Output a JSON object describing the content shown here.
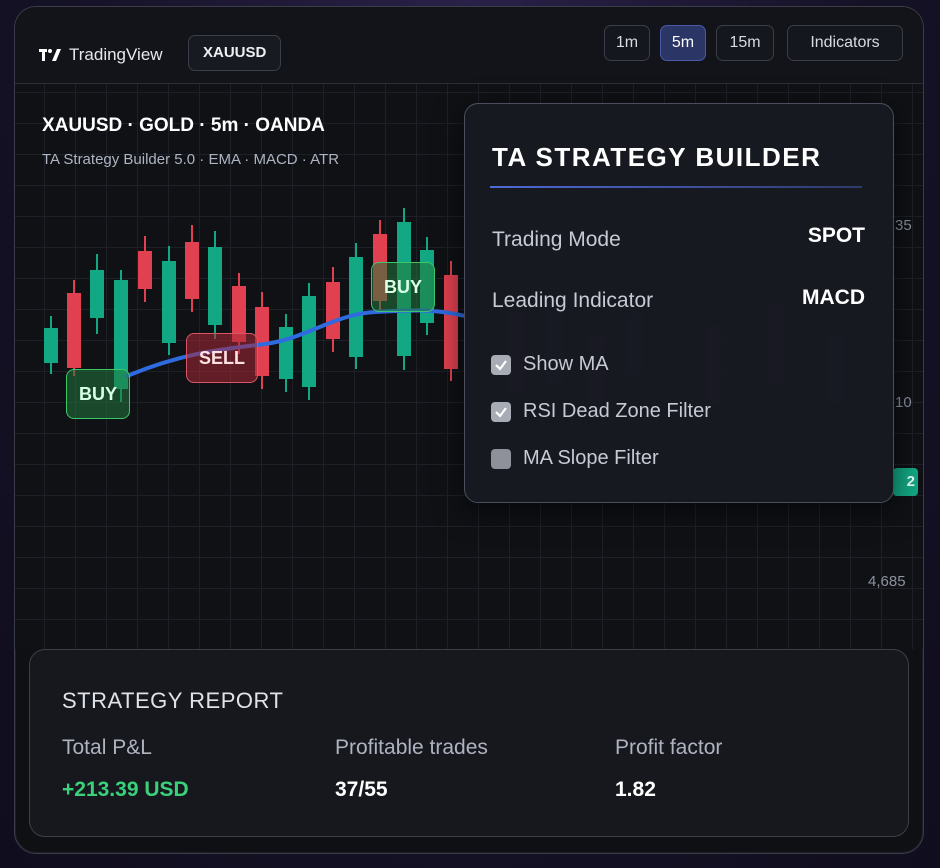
{
  "app": {
    "logo_text": "TradingView",
    "symbol": "XAUUSD"
  },
  "timeframes": [
    {
      "label": "1m",
      "active": false
    },
    {
      "label": "5m",
      "active": true
    },
    {
      "label": "15m",
      "active": false
    }
  ],
  "toolbar": {
    "indicators_label": "Indicators"
  },
  "chart": {
    "title": "XAUUSD · GOLD · 5m · OANDA",
    "subtitle": "TA Strategy Builder 5.0 · EMA · MACD · ATR",
    "price_labels": [
      "35",
      "10",
      "4,685"
    ],
    "last_price_tag": "2",
    "up_color": "#13a884",
    "down_color": "#e0404f",
    "ma_color": "#2f6be0",
    "signals": [
      {
        "label": "BUY",
        "type": "buy"
      },
      {
        "label": "SELL",
        "type": "sell"
      },
      {
        "label": "BUY",
        "type": "buy"
      }
    ]
  },
  "builder": {
    "title": "TA STRATEGY BUILDER",
    "trading_mode_label": "Trading Mode",
    "trading_mode_value": "SPOT",
    "leading_indicator_label": "Leading Indicator",
    "leading_indicator_value": "MACD",
    "options": [
      {
        "label": "Show MA",
        "checked": true
      },
      {
        "label": "RSI Dead Zone Filter",
        "checked": true
      },
      {
        "label": "MA Slope Filter",
        "checked": false
      }
    ]
  },
  "report": {
    "title": "STRATEGY REPORT",
    "metrics": [
      {
        "label": "Total P&L",
        "value": "+213.39 USD"
      },
      {
        "label": "Profitable trades",
        "value": "37/55"
      },
      {
        "label": "Profit factor",
        "value": "1.82"
      }
    ]
  }
}
